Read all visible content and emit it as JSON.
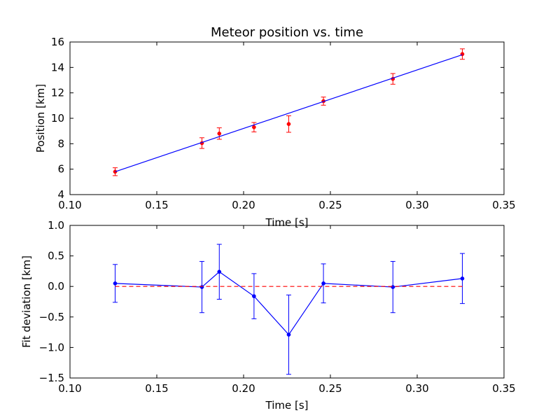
{
  "chart_data": [
    {
      "type": "scatter",
      "title": "Meteor position vs. time",
      "xlabel": "Time [s]",
      "ylabel": "Position [km]",
      "xlim": [
        0.1,
        0.35
      ],
      "ylim": [
        4,
        16
      ],
      "xticks": [
        "0.10",
        "0.15",
        "0.20",
        "0.25",
        "0.30",
        "0.35"
      ],
      "yticks": [
        "4",
        "6",
        "8",
        "10",
        "12",
        "14",
        "16"
      ],
      "grid": false,
      "series": [
        {
          "kind": "errorbar-points",
          "color": "#ff0000",
          "x": [
            0.126,
            0.176,
            0.186,
            0.206,
            0.226,
            0.246,
            0.286,
            0.326
          ],
          "y": [
            5.8,
            8.05,
            8.8,
            9.3,
            9.55,
            11.35,
            13.1,
            15.05
          ],
          "yerr": [
            0.31,
            0.42,
            0.45,
            0.37,
            0.65,
            0.32,
            0.42,
            0.41
          ]
        },
        {
          "kind": "line",
          "color": "#0000ff",
          "x": [
            0.126,
            0.326
          ],
          "y": [
            5.8,
            15.0
          ]
        }
      ]
    },
    {
      "type": "line",
      "title": "",
      "xlabel": "Time [s]",
      "ylabel": "Fit deviation [km]",
      "xlim": [
        0.1,
        0.35
      ],
      "ylim": [
        -1.5,
        1.0
      ],
      "xticks": [
        "0.10",
        "0.15",
        "0.20",
        "0.25",
        "0.30",
        "0.35"
      ],
      "yticks": [
        "−1.5",
        "−1.0",
        "−0.5",
        "0.0",
        "0.5",
        "1.0"
      ],
      "grid": false,
      "series": [
        {
          "kind": "errorbar-line",
          "color": "#0000ff",
          "x": [
            0.126,
            0.176,
            0.186,
            0.206,
            0.226,
            0.246,
            0.286,
            0.326
          ],
          "y": [
            0.05,
            -0.01,
            0.24,
            -0.16,
            -0.79,
            0.05,
            -0.01,
            0.13
          ],
          "yerr": [
            0.31,
            0.42,
            0.45,
            0.37,
            0.65,
            0.32,
            0.42,
            0.41
          ]
        },
        {
          "kind": "dashed-reference",
          "color": "#ff0000",
          "x": [
            0.126,
            0.326
          ],
          "y": [
            0,
            0
          ]
        }
      ]
    }
  ]
}
